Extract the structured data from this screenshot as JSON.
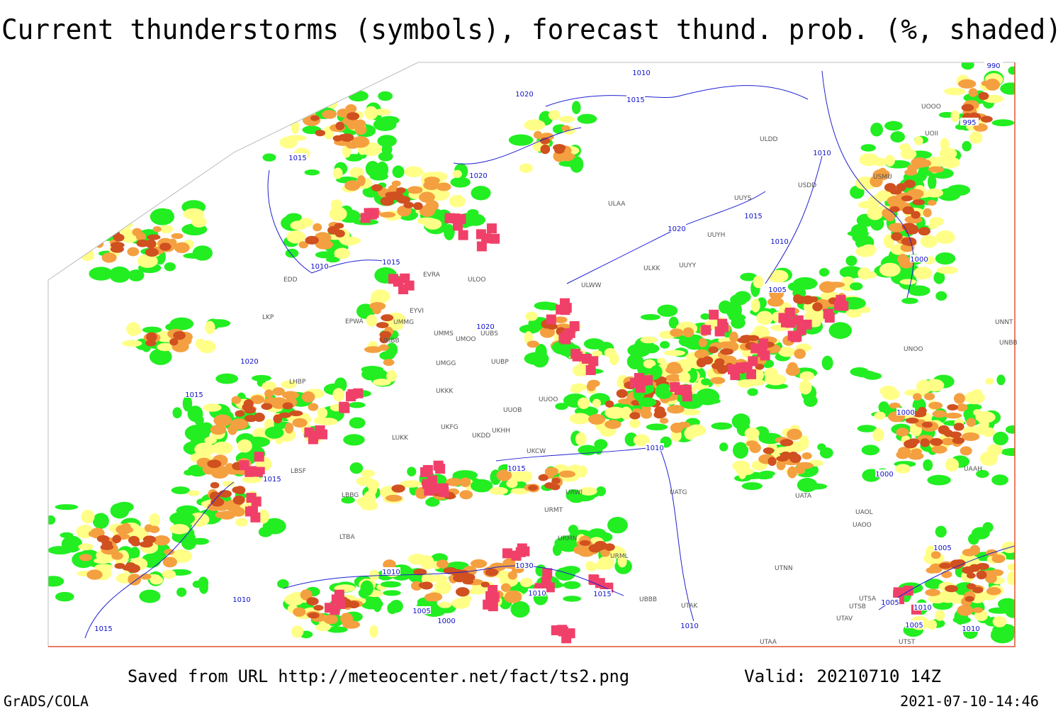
{
  "title": "Current thunderstorms (symbols), forecast thund. prob. (%, shaded)",
  "footer": {
    "source": "Saved from URL http://meteocenter.net/fact/ts2.png",
    "valid": "Valid: 20210710 14Z",
    "software": "GrADS/COLA",
    "timestamp": "2021-07-10-14:46"
  },
  "isobars": [
    1010,
    1020,
    1015,
    990,
    995,
    1010,
    1015,
    1020,
    1020,
    1015,
    1010,
    1000,
    1010,
    1015,
    1005,
    1020,
    1020,
    1015,
    1010,
    1000,
    1015,
    1015,
    1000,
    1005,
    1010,
    1030,
    1010,
    1015,
    1005,
    1000,
    1010,
    1015,
    1005,
    1010,
    1005,
    1010,
    1010
  ],
  "stations": [
    "ULDD",
    "USDD",
    "USMU",
    "UUYS",
    "ULAA",
    "UUYH",
    "ULKK",
    "UUYY",
    "ULWW",
    "ULOO",
    "EVRA",
    "EDD",
    "EYVI",
    "UMMG",
    "EPWA",
    "LKP",
    "UMMS",
    "UMOO",
    "UUBS",
    "UMBB",
    "UMGG",
    "UUBP",
    "UKKK",
    "UUOO",
    "UUOB",
    "UKHH",
    "UKFG",
    "UKDD",
    "LUKK",
    "UKCW",
    "UOOO",
    "UOII",
    "UNNT",
    "UNBB",
    "UNOO",
    "UAAH",
    "UATA",
    "UAOL",
    "UAOO",
    "UTNN",
    "UTSA",
    "UTSB",
    "UTAV",
    "UTAA",
    "UTST",
    "URMT",
    "URWI",
    "URMN",
    "URML",
    "UBBB",
    "UTAK",
    "UATG",
    "LTBA",
    "LBBG",
    "LBSF",
    "LHBP"
  ]
}
